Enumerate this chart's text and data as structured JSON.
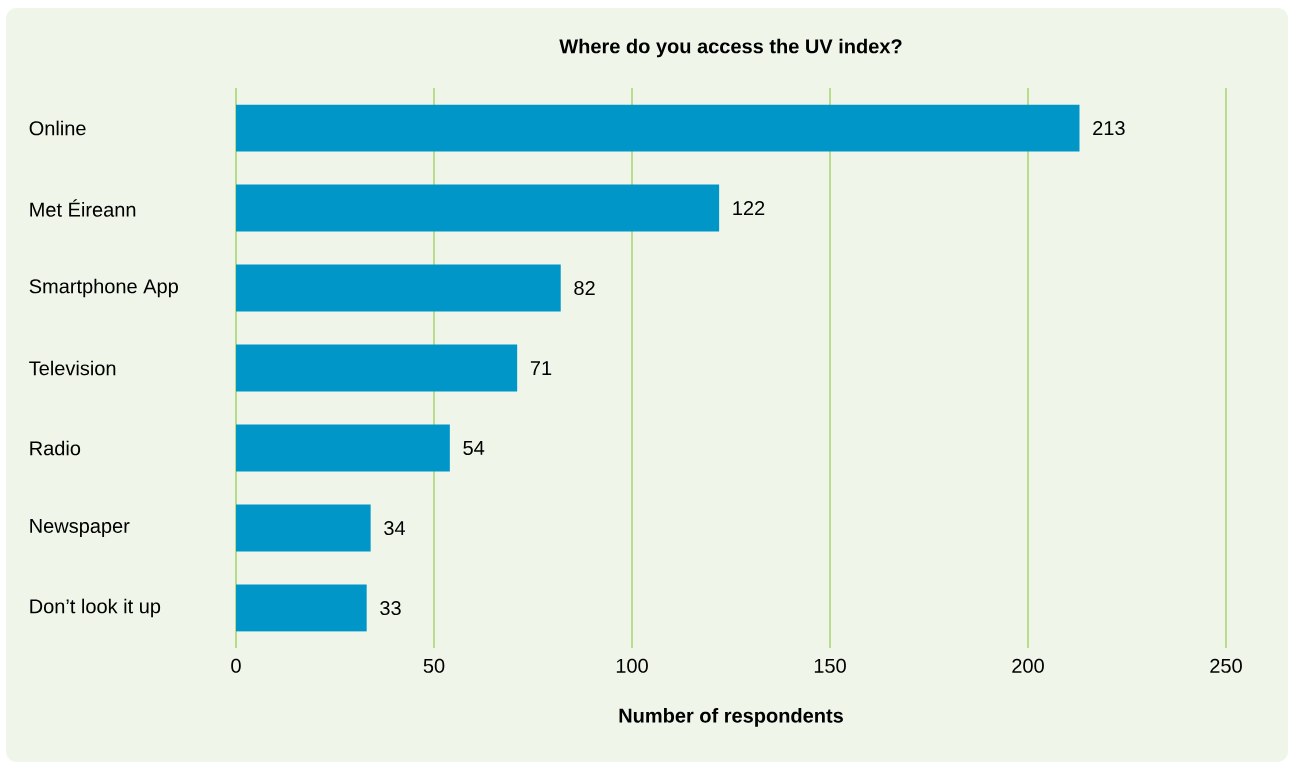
{
  "chart_data": {
    "type": "bar",
    "orientation": "horizontal",
    "title": "Where do you access the UV index?",
    "xlabel": "Number of respondents",
    "categories": [
      "Online",
      "Met Éireann",
      "Smartphone App",
      "Television",
      "Radio",
      "Newspaper",
      "Don’t look it up"
    ],
    "values": [
      213,
      122,
      82,
      71,
      54,
      34,
      33
    ],
    "color": "#0096c8",
    "xlim": [
      0,
      250
    ],
    "xticks": [
      0,
      50,
      100,
      150,
      200,
      250
    ],
    "grid": "x",
    "data_labels": true
  }
}
